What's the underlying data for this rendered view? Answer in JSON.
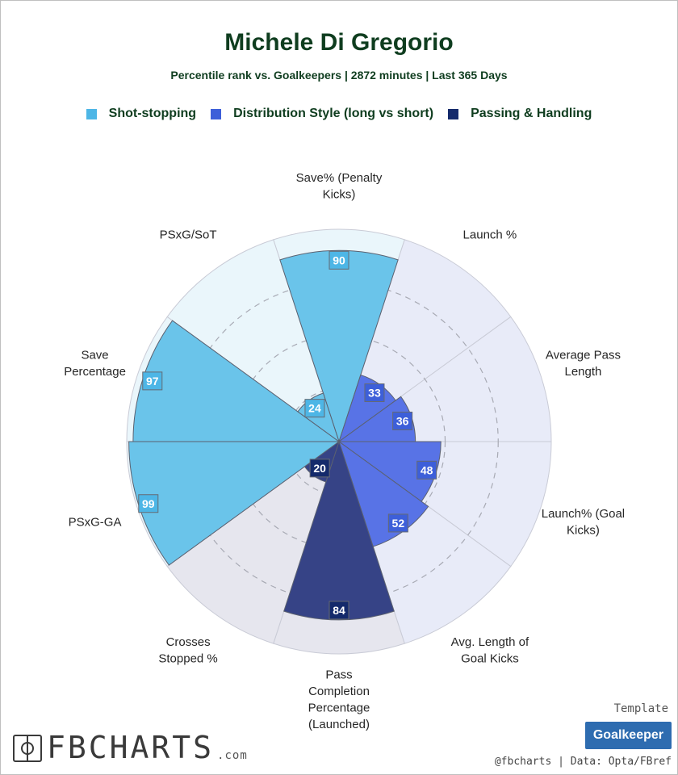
{
  "title": "Michele Di Gregorio",
  "subtitle": "Percentile rank vs. Goalkeepers | 2872 minutes | Last 365 Days",
  "legend": [
    {
      "label": "Shot-stopping",
      "color": "#4db6e6"
    },
    {
      "label": "Distribution Style (long vs short)",
      "color": "#3d5fd9"
    },
    {
      "label": "Passing & Handling",
      "color": "#142a6b"
    }
  ],
  "chart_data": {
    "type": "polar-bar",
    "max": 100,
    "gridlines": [
      25,
      50,
      75
    ],
    "grid": true,
    "categories": [
      {
        "label": "Save% (Penalty Kicks)",
        "lines": [
          "Save% (Penalty",
          "Kicks)"
        ],
        "group": 0,
        "value": 90
      },
      {
        "label": "Launch %",
        "lines": [
          "Launch %"
        ],
        "group": 1,
        "value": 33
      },
      {
        "label": "Average Pass Length",
        "lines": [
          "Average Pass",
          "Length"
        ],
        "group": 1,
        "value": 36
      },
      {
        "label": "Launch% (Goal Kicks)",
        "lines": [
          "Launch% (Goal",
          "Kicks)"
        ],
        "group": 1,
        "value": 48
      },
      {
        "label": "Avg. Length of Goal Kicks",
        "lines": [
          "Avg. Length of",
          "Goal Kicks"
        ],
        "group": 1,
        "value": 52
      },
      {
        "label": "Pass Completion Percentage (Launched)",
        "lines": [
          "Pass",
          "Completion",
          "Percentage",
          "(Launched)"
        ],
        "group": 2,
        "value": 84
      },
      {
        "label": "Crosses Stopped %",
        "lines": [
          "Crosses",
          "Stopped %"
        ],
        "group": 2,
        "value": 20
      },
      {
        "label": "PSxG-GA",
        "lines": [
          "PSxG-GA"
        ],
        "group": 0,
        "value": 99
      },
      {
        "label": "Save Percentage",
        "lines": [
          "Save",
          "Percentage"
        ],
        "group": 0,
        "value": 97
      },
      {
        "label": "PSxG/SoT",
        "lines": [
          "PSxG/SoT"
        ],
        "group": 0,
        "value": 24
      }
    ],
    "group_colors": [
      "#6ac4ea",
      "#5873e6",
      "#364386"
    ],
    "group_backgrounds": [
      "#eaf6fb",
      "#e8ebf8",
      "#e6e6ee"
    ],
    "label_colors": [
      "#4db6e6",
      "#3d5fd9",
      "#142a6b"
    ]
  },
  "footer": {
    "brand": "FBCHARTS",
    "brand_suffix": ".com",
    "template_label": "Template",
    "template_name": "Goalkeeper",
    "credits": "@fbcharts | Data: Opta/FBref"
  }
}
